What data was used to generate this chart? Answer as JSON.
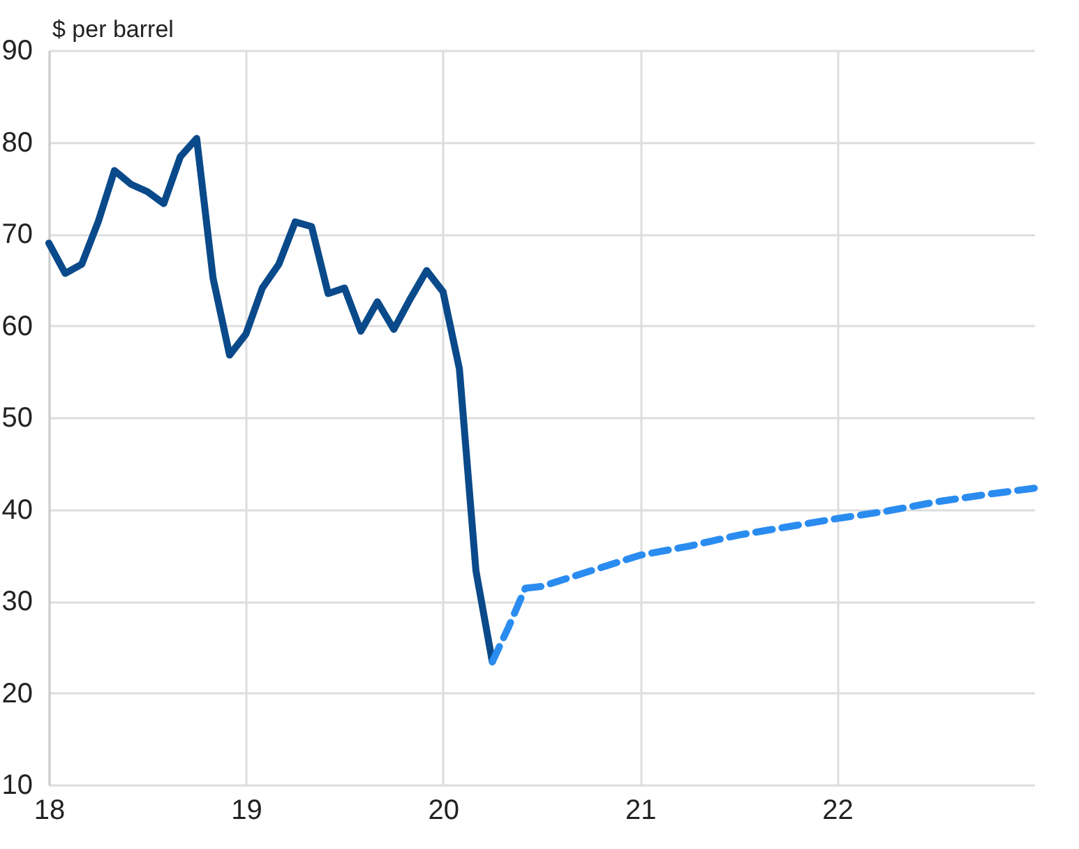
{
  "chart_data": {
    "type": "line",
    "ylabel": "$ per barrel",
    "xlim": [
      18,
      23
    ],
    "xticks": [
      18,
      19,
      20,
      21,
      22
    ],
    "ylim": [
      10,
      90
    ],
    "yticks": [
      10,
      20,
      30,
      40,
      50,
      60,
      70,
      80,
      90
    ],
    "grid": true,
    "series": [
      {
        "color": "#0a4a8a",
        "line_style": "solid",
        "x": [
          18,
          18.083,
          18.167,
          18.25,
          18.333,
          18.417,
          18.5,
          18.583,
          18.667,
          18.75,
          18.833,
          18.917,
          19,
          19.083,
          19.167,
          19.25,
          19.333,
          19.417,
          19.5,
          19.583,
          19.667,
          19.75,
          19.833,
          19.917,
          20,
          20.083,
          20.167,
          20.25
        ],
        "values": [
          69,
          65.7,
          66.7,
          71.3,
          76.9,
          75.4,
          74.6,
          73.3,
          78.4,
          80.4,
          65.2,
          56.8,
          59.1,
          64.1,
          66.7,
          71.3,
          70.8,
          63.5,
          64.1,
          59.4,
          62.6,
          59.6,
          62.9,
          66,
          63.7,
          55.3,
          33.3,
          23.4
        ]
      },
      {
        "color": "#2b8cf0",
        "line_style": "dashed",
        "x": [
          20.25,
          20.333,
          20.417,
          20.5,
          20.75,
          21,
          21.25,
          21.5,
          21.75,
          22,
          22.25,
          22.5,
          22.75,
          23
        ],
        "values": [
          23.4,
          27.2,
          31.4,
          31.6,
          33.3,
          35,
          36,
          37.2,
          38.1,
          39,
          39.8,
          40.8,
          41.6,
          42.3
        ]
      }
    ]
  }
}
